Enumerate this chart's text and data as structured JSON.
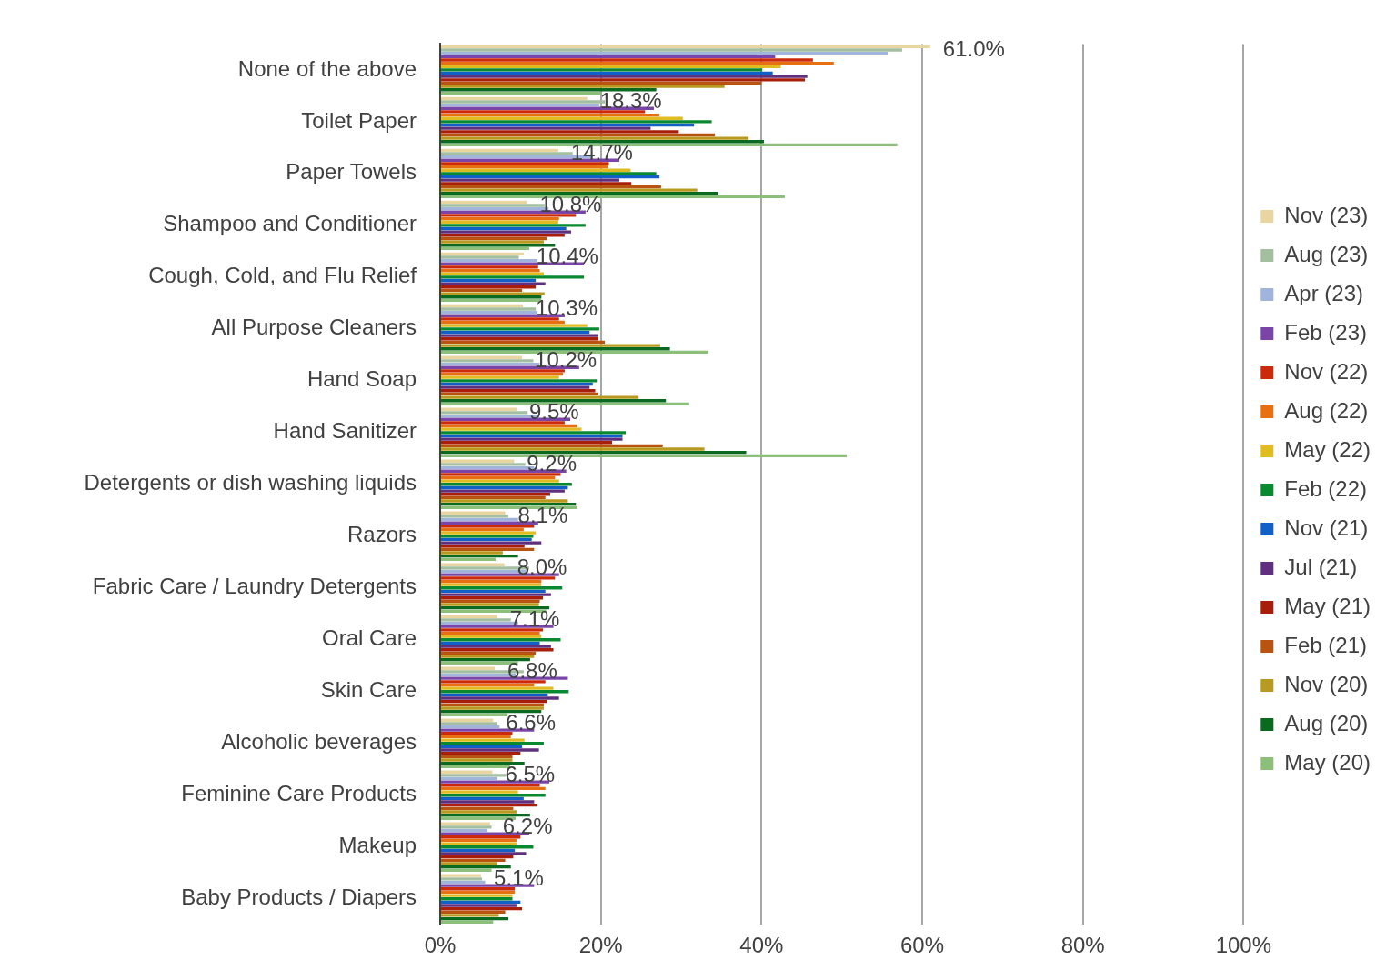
{
  "chart_data": {
    "type": "bar",
    "orientation": "horizontal",
    "categories": [
      "None of the above",
      "Toilet Paper",
      "Paper Towels",
      "Shampoo and Conditioner",
      "Cough, Cold, and Flu Relief",
      "All Purpose Cleaners",
      "Hand Soap",
      "Hand Sanitizer",
      "Detergents or dish washing liquids",
      "Razors",
      "Fabric Care / Laundry Detergents",
      "Oral Care",
      "Skin Care",
      "Alcoholic beverages",
      "Feminine Care Products",
      "Makeup",
      "Baby Products / Diapers"
    ],
    "xlim": [
      0,
      100
    ],
    "xticks": [
      {
        "value": 0,
        "label": "0%"
      },
      {
        "value": 20,
        "label": "20%"
      },
      {
        "value": 40,
        "label": "40%"
      },
      {
        "value": 60,
        "label": "60%"
      },
      {
        "value": 80,
        "label": "80%"
      },
      {
        "value": 100,
        "label": "100%"
      }
    ],
    "grid": "x",
    "legend": "right",
    "series": [
      {
        "name": "Nov (23)",
        "color": "#e8d5a0",
        "values": [
          61.0,
          18.3,
          14.7,
          10.8,
          10.4,
          10.3,
          10.2,
          9.5,
          9.2,
          8.1,
          8.0,
          7.1,
          6.8,
          6.6,
          6.5,
          6.2,
          5.1
        ],
        "value_labels": [
          "61.0%",
          "18.3%",
          "14.7%",
          "10.8%",
          "10.4%",
          "10.3%",
          "10.2%",
          "9.5%",
          "9.2%",
          "8.1%",
          "8.0%",
          "7.1%",
          "6.8%",
          "6.6%",
          "6.5%",
          "6.2%",
          "5.1%"
        ]
      },
      {
        "name": "Aug (23)",
        "color": "#a3bfa0",
        "values": [
          57.5,
          20.5,
          16.5,
          13.0,
          9.8,
          11.9,
          11.6,
          10.9,
          10.6,
          8.5,
          11.1,
          8.8,
          10.4,
          7.1,
          8.2,
          6.4,
          5.2
        ]
      },
      {
        "name": "Apr (23)",
        "color": "#a0b4dc",
        "values": [
          55.7,
          19.8,
          19.0,
          13.5,
          12.1,
          12.1,
          12.4,
          12.1,
          11.7,
          9.7,
          10.7,
          9.7,
          9.4,
          7.4,
          7.1,
          5.9,
          5.6
        ]
      },
      {
        "name": "Feb (23)",
        "color": "#7a44a8",
        "values": [
          41.7,
          26.6,
          22.3,
          18.1,
          17.9,
          15.5,
          17.3,
          16.2,
          15.7,
          12.2,
          14.8,
          14.1,
          15.9,
          11.7,
          13.6,
          11.1,
          11.7
        ]
      },
      {
        "name": "Nov (22)",
        "color": "#cc2a0a",
        "values": [
          46.4,
          25.5,
          21.0,
          16.9,
          12.2,
          14.8,
          15.5,
          15.5,
          15.0,
          11.7,
          14.3,
          12.8,
          13.1,
          9.0,
          12.4,
          10.0,
          9.3
        ]
      },
      {
        "name": "Aug (22)",
        "color": "#e87010",
        "values": [
          49.0,
          27.3,
          20.9,
          14.8,
          12.4,
          15.5,
          15.3,
          17.1,
          14.3,
          10.4,
          12.6,
          12.4,
          11.7,
          8.8,
          13.1,
          9.5,
          9.3
        ]
      },
      {
        "name": "May (22)",
        "color": "#e0bc20",
        "values": [
          42.4,
          30.2,
          23.7,
          14.7,
          12.9,
          18.3,
          14.8,
          17.6,
          14.8,
          11.9,
          12.6,
          12.6,
          14.1,
          10.5,
          9.7,
          9.5,
          9.0
        ]
      },
      {
        "name": "Feb (22)",
        "color": "#0a8a30",
        "values": [
          40.1,
          33.8,
          26.9,
          18.1,
          17.9,
          19.8,
          19.5,
          23.1,
          16.4,
          11.6,
          15.2,
          15.0,
          16.0,
          12.9,
          13.1,
          11.6,
          9.0
        ]
      },
      {
        "name": "Nov (21)",
        "color": "#1060c8",
        "values": [
          41.4,
          31.6,
          27.3,
          15.7,
          11.9,
          18.6,
          19.0,
          22.7,
          15.9,
          11.4,
          13.1,
          12.4,
          13.4,
          10.2,
          10.4,
          9.3,
          10.0
        ]
      },
      {
        "name": "Jul (21)",
        "color": "#60307f",
        "values": [
          45.7,
          26.2,
          22.3,
          16.3,
          13.1,
          19.7,
          18.6,
          22.7,
          15.5,
          12.6,
          13.8,
          13.8,
          14.8,
          12.3,
          11.7,
          10.7,
          9.5
        ]
      },
      {
        "name": "May (21)",
        "color": "#a81e0a",
        "values": [
          45.4,
          29.7,
          23.8,
          15.5,
          11.9,
          19.7,
          19.3,
          21.4,
          13.7,
          10.5,
          12.8,
          14.1,
          13.3,
          10.0,
          12.1,
          9.1,
          10.2
        ]
      },
      {
        "name": "Feb (21)",
        "color": "#b85410",
        "values": [
          40.0,
          34.2,
          27.5,
          13.3,
          10.2,
          20.5,
          19.7,
          27.7,
          13.1,
          11.7,
          12.4,
          11.9,
          12.9,
          9.0,
          9.1,
          8.1,
          8.1
        ]
      },
      {
        "name": "Nov (20)",
        "color": "#b89a20",
        "values": [
          35.4,
          38.4,
          32.0,
          12.9,
          13.0,
          27.4,
          24.7,
          32.9,
          15.9,
          7.8,
          12.3,
          11.7,
          12.9,
          9.0,
          9.5,
          7.1,
          7.3
        ]
      },
      {
        "name": "Aug (20)",
        "color": "#0a6a20",
        "values": [
          26.9,
          40.3,
          34.6,
          14.3,
          12.6,
          28.6,
          28.1,
          38.1,
          16.9,
          9.7,
          13.6,
          11.2,
          12.6,
          10.5,
          11.2,
          8.8,
          8.5
        ]
      },
      {
        "name": "May (20)",
        "color": "#8cc07a",
        "values": [
          20.0,
          56.9,
          42.9,
          11.1,
          12.6,
          33.4,
          31.0,
          50.6,
          17.1,
          6.9,
          13.2,
          9.7,
          8.4,
          8.7,
          9.4,
          6.4,
          6.6
        ]
      }
    ]
  }
}
